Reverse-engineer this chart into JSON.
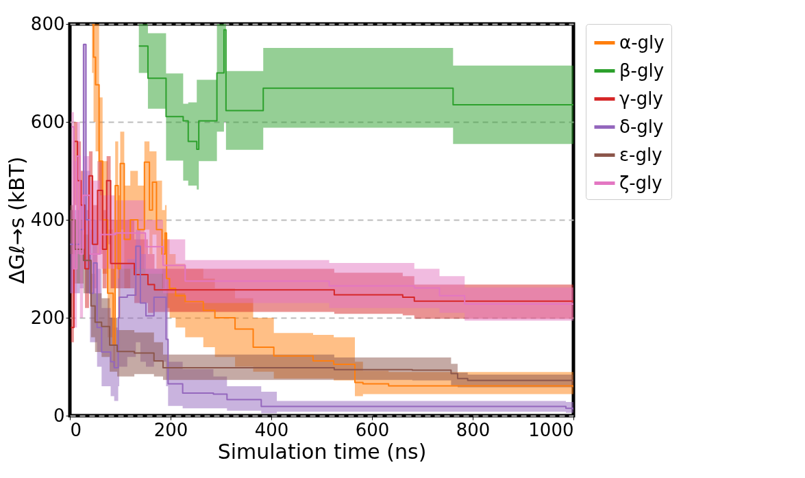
{
  "chart_data": {
    "type": "step",
    "xlabel": "Simulation time (ns)",
    "ylabel": "ΔGℓ→s (kBT)",
    "xlim": [
      0,
      1000
    ],
    "xticks": [
      0,
      200,
      400,
      600,
      800,
      1000
    ],
    "ylim": [
      0,
      800
    ],
    "yticks": [
      0,
      200,
      400,
      600,
      800
    ],
    "grid": "y",
    "legend": "right",
    "line_style": "solid",
    "marker": "none",
    "series": [
      {
        "name": "α-gly",
        "color": "#ff7f0e",
        "x": [
          44,
          47,
          51,
          58,
          65,
          75,
          86,
          90,
          96,
          100,
          108,
          120,
          135,
          148,
          158,
          164,
          172,
          183,
          189,
          192,
          198,
          210,
          229,
          265,
          288,
          328,
          364,
          405,
          483,
          524,
          566,
          582,
          633,
          1000
        ],
        "values": [
          800,
          732,
          676,
          520,
          400,
          250,
          144,
          470,
          300,
          515,
          360,
          400,
          380,
          518,
          420,
          477,
          380,
          330,
          373,
          280,
          260,
          245,
          233,
          215,
          200,
          177,
          140,
          122,
          112,
          105,
          68,
          65,
          61,
          58
        ],
        "lower": [
          700,
          600,
          540,
          400,
          290,
          160,
          100,
          300,
          200,
          380,
          260,
          300,
          300,
          380,
          330,
          370,
          300,
          260,
          280,
          220,
          200,
          180,
          160,
          140,
          120,
          100,
          90,
          76,
          76,
          72,
          40,
          44,
          44,
          40
        ],
        "upper": [
          800,
          800,
          800,
          650,
          520,
          380,
          300,
          560,
          450,
          580,
          470,
          500,
          470,
          560,
          540,
          540,
          480,
          420,
          430,
          360,
          330,
          310,
          300,
          280,
          260,
          240,
          200,
          169,
          165,
          160,
          110,
          92,
          89,
          85
        ]
      },
      {
        "name": "β-gly",
        "color": "#2ca02c",
        "x": [
          137,
          155,
          191,
          225,
          235,
          252,
          256,
          292,
          306,
          310,
          384,
          761,
          1000
        ],
        "values": [
          755,
          689,
          611,
          602,
          560,
          544,
          602,
          700,
          788,
          623,
          669,
          635,
          636
        ],
        "lower": [
          700,
          627,
          521,
          480,
          470,
          462,
          520,
          580,
          600,
          543,
          588,
          555,
          557
        ],
        "upper": [
          800,
          781,
          699,
          637,
          640,
          686,
          686,
          800,
          800,
          704,
          751,
          715,
          716
        ]
      },
      {
        "name": "γ-gly",
        "color": "#d62728",
        "x": [
          2,
          8,
          15,
          22,
          30,
          38,
          45,
          55,
          65,
          73,
          81,
          128,
          155,
          168,
          525,
          661,
          684,
          1000
        ],
        "values": [
          180,
          560,
          480,
          430,
          300,
          490,
          350,
          460,
          340,
          480,
          311,
          288,
          268,
          257,
          247,
          242,
          234,
          234
        ],
        "lower": [
          150,
          430,
          400,
          330,
          220,
          350,
          260,
          330,
          260,
          350,
          260,
          230,
          210,
          212,
          208,
          205,
          198,
          198
        ],
        "upper": [
          420,
          600,
          560,
          500,
          420,
          540,
          430,
          520,
          420,
          530,
          400,
          360,
          330,
          300,
          292,
          285,
          268,
          268
        ]
      },
      {
        "name": "δ-gly",
        "color": "#9467bd",
        "x": [
          0,
          20,
          27,
          32,
          40,
          47,
          54,
          63,
          81,
          88,
          96,
          98,
          114,
          131,
          140,
          151,
          167,
          191,
          195,
          224,
          285,
          312,
          380,
          411,
          985,
          1000
        ],
        "values": [
          350,
          380,
          758,
          400,
          250,
          312,
          180,
          130,
          110,
          98,
          200,
          242,
          246,
          346,
          230,
          204,
          242,
          156,
          65,
          46,
          44,
          33,
          19,
          19,
          15,
          12
        ],
        "lower": [
          250,
          260,
          300,
          250,
          150,
          150,
          100,
          60,
          40,
          30,
          60,
          100,
          120,
          150,
          110,
          100,
          110,
          60,
          20,
          15,
          15,
          10,
          5,
          8,
          6,
          5
        ],
        "upper": [
          420,
          430,
          760,
          500,
          380,
          400,
          300,
          220,
          200,
          180,
          280,
          310,
          320,
          380,
          330,
          300,
          300,
          280,
          110,
          95,
          80,
          60,
          49,
          30,
          28,
          25
        ]
      },
      {
        "name": "ε-gly",
        "color": "#8c564b",
        "x": [
          0,
          10,
          27,
          42,
          50,
          63,
          79,
          94,
          128,
          167,
          185,
          525,
          680,
          757,
          770,
          790,
          1000
        ],
        "values": [
          400,
          340,
          317,
          224,
          191,
          182,
          144,
          131,
          128,
          112,
          98,
          94,
          93,
          86,
          76,
          72,
          70
        ],
        "lower": [
          330,
          270,
          250,
          160,
          130,
          120,
          90,
          80,
          85,
          80,
          73,
          73,
          72,
          62,
          58,
          58,
          57
        ],
        "upper": [
          430,
          400,
          370,
          290,
          250,
          240,
          200,
          175,
          170,
          150,
          125,
          119,
          119,
          106,
          88,
          84,
          82
        ]
      },
      {
        "name": "ζ-gly",
        "color": "#e377c2",
        "x": [
          3,
          8,
          14,
          20,
          26,
          40,
          60,
          90,
          150,
          185,
          229,
          515,
          684,
          734,
          784,
          1000
        ],
        "values": [
          590,
          300,
          530,
          330,
          450,
          330,
          370,
          373,
          345,
          307,
          275,
          265,
          261,
          245,
          228,
          228
        ],
        "lower": [
          250,
          180,
          330,
          200,
          300,
          250,
          300,
          300,
          290,
          250,
          230,
          220,
          220,
          210,
          194,
          194
        ],
        "upper": [
          620,
          520,
          600,
          480,
          530,
          480,
          450,
          440,
          400,
          360,
          318,
          312,
          300,
          285,
          262,
          262
        ]
      }
    ]
  }
}
